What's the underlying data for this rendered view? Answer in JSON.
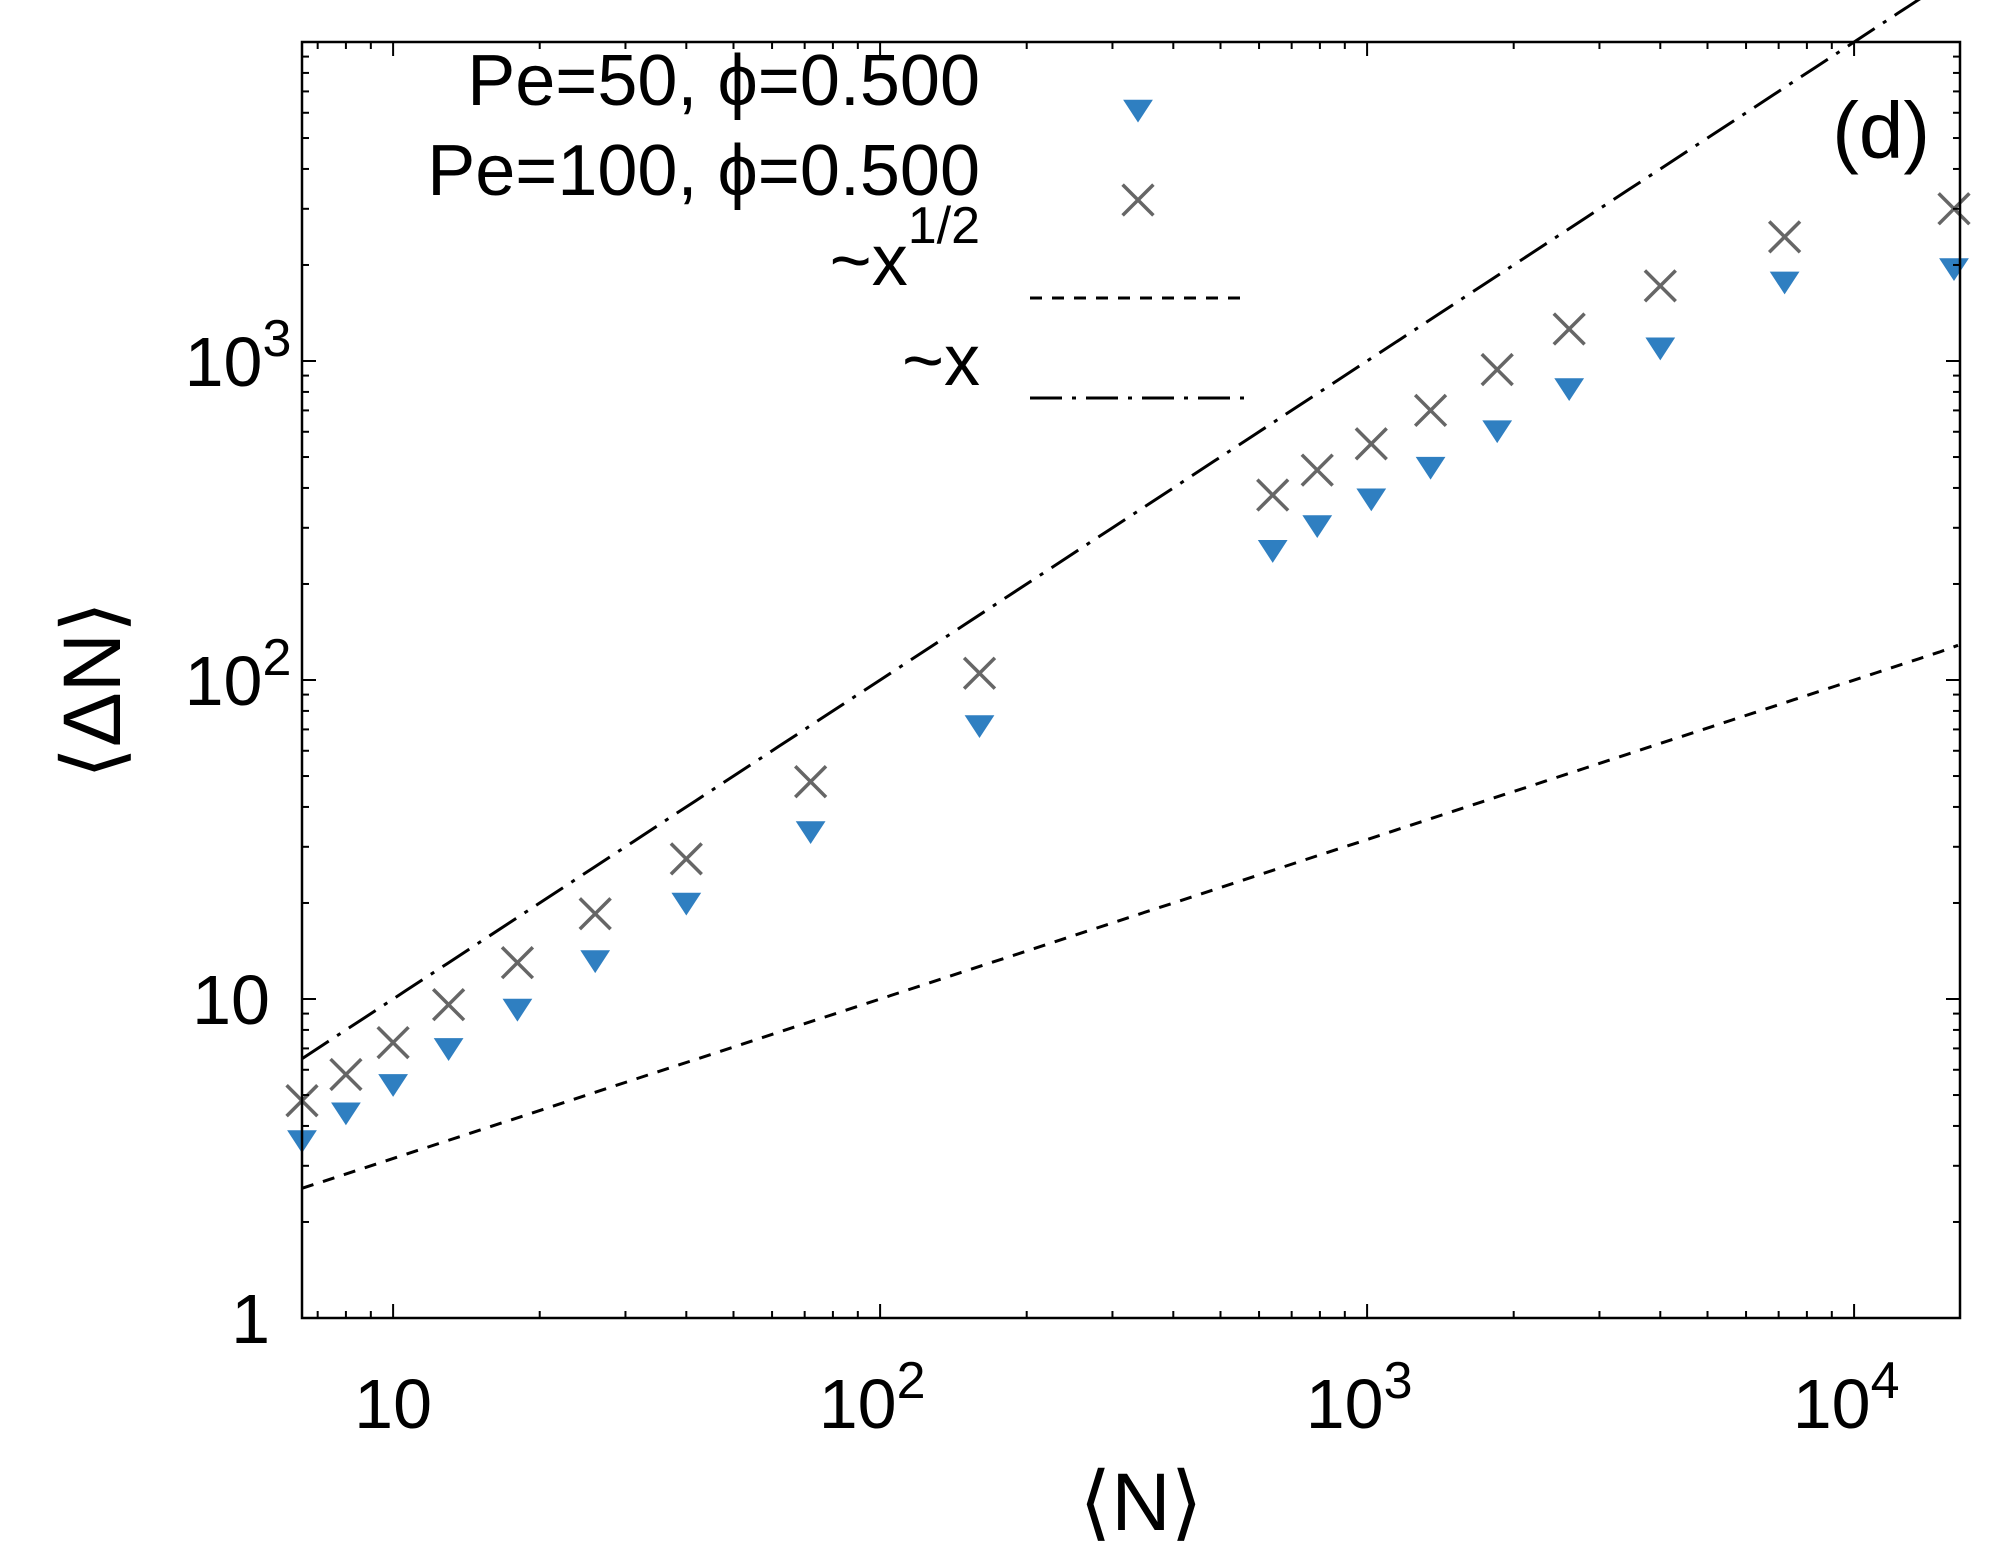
{
  "chart_data": {
    "type": "scatter",
    "title": "",
    "panel_label": "(d)",
    "xlabel": "⟨N⟩",
    "ylabel": "⟨ΔN⟩",
    "xscale": "log",
    "yscale": "log",
    "xlim": [
      6.5,
      16500
    ],
    "ylim": [
      1,
      10000
    ],
    "legend_position": "top-right",
    "x_ticks": [
      {
        "value": 10,
        "base": "10",
        "exp": ""
      },
      {
        "value": 100,
        "base": "10",
        "exp": "2"
      },
      {
        "value": 1000,
        "base": "10",
        "exp": "3"
      },
      {
        "value": 10000,
        "base": "10",
        "exp": "4"
      }
    ],
    "y_ticks": [
      {
        "value": 1,
        "base": "1",
        "exp": ""
      },
      {
        "value": 10,
        "base": "10",
        "exp": ""
      },
      {
        "value": 100,
        "base": "10",
        "exp": "2"
      },
      {
        "value": 1000,
        "base": "10",
        "exp": "3"
      }
    ],
    "series": [
      {
        "name": "Pe=50, ϕ=0.500",
        "marker": "triangle-down",
        "color": "#2f7fc1",
        "x": [
          6.5,
          8,
          10,
          13,
          18,
          26,
          40,
          72,
          160,
          640,
          790,
          1020,
          1350,
          1850,
          2600,
          4000,
          7200,
          16500
        ],
        "y": [
          3.6,
          4.4,
          5.4,
          7.0,
          9.3,
          13.2,
          20.0,
          33.5,
          72,
          255,
          305,
          370,
          465,
          605,
          820,
          1100,
          1770,
          1950
        ]
      },
      {
        "name": "Pe=100, ϕ=0.500",
        "marker": "cross",
        "color": "#666666",
        "x": [
          6.5,
          8,
          10,
          13,
          18,
          26,
          40,
          72,
          160,
          640,
          790,
          1020,
          1350,
          1850,
          2600,
          4000,
          7200,
          16500
        ],
        "y": [
          4.8,
          5.8,
          7.3,
          9.6,
          13.0,
          18.5,
          27.5,
          48,
          105,
          380,
          455,
          550,
          700,
          940,
          1260,
          1720,
          2450,
          3000
        ]
      },
      {
        "name": "~x",
        "name_sup": "1/2",
        "line": "dashed",
        "color": "#000000",
        "formula": "y = x^0.5",
        "x": [
          6.5,
          16500
        ]
      },
      {
        "name": "~x",
        "name_sup": "",
        "line": "dashdot",
        "color": "#000000",
        "formula": "y = x",
        "x": [
          6.5,
          16500
        ]
      }
    ]
  }
}
